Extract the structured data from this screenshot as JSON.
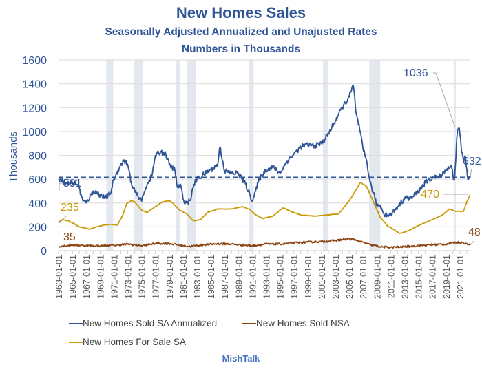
{
  "chart_data": {
    "type": "line",
    "title": "New Homes Sales",
    "subtitle": "Seasonally Adjusted Annualized and Unajusted Rates",
    "subtitle2": "Numbers in Thousands",
    "xlabel": "",
    "ylabel": "Thousands",
    "ylim": [
      0,
      1600
    ],
    "xlim": [
      1963.0,
      2022.5
    ],
    "yticks": [
      "0",
      "200",
      "400",
      "600",
      "800",
      "1000",
      "1200",
      "1400",
      "1600"
    ],
    "xticks": [
      "1963-01-01",
      "1965-01-01",
      "1967-01-01",
      "1969-01-01",
      "1971-01-01",
      "1973-01-01",
      "1975-01-01",
      "1977-01-01",
      "1979-01-01",
      "1981-01-01",
      "1983-01-01",
      "1985-01-01",
      "1987-01-01",
      "1989-01-01",
      "1991-01-01",
      "1993-01-01",
      "1995-01-01",
      "1997-01-01",
      "1999-01-01",
      "2001-01-01",
      "2003-01-01",
      "2005-01-01",
      "2007-01-01",
      "2009-01-01",
      "2011-01-01",
      "2013-01-01",
      "2015-01-01",
      "2017-01-01",
      "2019-01-01",
      "2021-01-01"
    ],
    "grid": true,
    "legend_position": "bottom",
    "reference_line": {
      "value": 615,
      "style": "dashed",
      "color": "#2f5597"
    },
    "recessions": [
      [
        1969.9,
        1970.9
      ],
      [
        1973.9,
        1975.2
      ],
      [
        1980.0,
        1980.5
      ],
      [
        1981.5,
        1982.9
      ],
      [
        1990.5,
        1991.2
      ],
      [
        2001.2,
        2001.9
      ],
      [
        2007.9,
        2009.5
      ],
      [
        2020.1,
        2020.35
      ]
    ],
    "series": [
      {
        "name": "New Homes Sold SA Annualized",
        "color": "#2f5597",
        "noise": 45,
        "x": [
          1963.0,
          1963.3,
          1964.0,
          1965.0,
          1965.8,
          1966.5,
          1967.0,
          1968.0,
          1969.0,
          1969.8,
          1970.5,
          1971.0,
          1971.8,
          1972.5,
          1973.0,
          1973.6,
          1974.0,
          1974.7,
          1975.1,
          1975.8,
          1976.5,
          1977.0,
          1977.8,
          1978.5,
          1979.0,
          1979.8,
          1980.2,
          1980.6,
          1981.0,
          1981.5,
          1982.0,
          1982.6,
          1983.0,
          1984.0,
          1985.0,
          1986.0,
          1986.3,
          1987.0,
          1988.0,
          1989.0,
          1990.0,
          1991.0,
          1991.5,
          1992.0,
          1993.0,
          1994.0,
          1995.0,
          1996.0,
          1997.0,
          1998.0,
          1999.0,
          2000.0,
          2001.0,
          2002.0,
          2003.0,
          2004.0,
          2005.0,
          2005.6,
          2006.0,
          2006.5,
          2007.0,
          2007.5,
          2008.0,
          2008.5,
          2009.0,
          2009.5,
          2010.0,
          2010.5,
          2011.0,
          2012.0,
          2013.0,
          2014.0,
          2015.0,
          2016.0,
          2017.0,
          2018.0,
          2019.0,
          2019.8,
          2020.2,
          2020.6,
          2020.9,
          2021.2,
          2021.5,
          2021.8,
          2022.0,
          2022.2,
          2022.5
        ],
        "y": [
          591,
          610,
          560,
          570,
          560,
          420,
          400,
          500,
          470,
          440,
          480,
          600,
          700,
          760,
          720,
          540,
          500,
          440,
          430,
          560,
          630,
          800,
          830,
          810,
          720,
          680,
          520,
          560,
          430,
          400,
          420,
          560,
          600,
          640,
          680,
          720,
          880,
          670,
          650,
          650,
          560,
          420,
          500,
          600,
          680,
          700,
          650,
          750,
          810,
          870,
          890,
          880,
          900,
          980,
          1090,
          1200,
          1290,
          1389,
          1150,
          1020,
          850,
          760,
          580,
          480,
          380,
          380,
          310,
          300,
          300,
          370,
          440,
          440,
          500,
          570,
          610,
          620,
          680,
          700,
          580,
          980,
          1036,
          860,
          760,
          790,
          680,
          580,
          632
        ]
      },
      {
        "name": "New Homes Sold NSA",
        "color": "#8b4513",
        "noise": 10,
        "x": [
          1963.0,
          1965.0,
          1967.0,
          1969.0,
          1971.0,
          1973.0,
          1975.0,
          1977.0,
          1979.0,
          1981.0,
          1982.0,
          1984.0,
          1986.0,
          1988.0,
          1990.0,
          1991.0,
          1993.0,
          1995.0,
          1997.0,
          1999.0,
          2001.0,
          2003.0,
          2005.0,
          2006.0,
          2008.0,
          2009.5,
          2011.0,
          2013.0,
          2015.0,
          2017.0,
          2019.0,
          2020.5,
          2021.5,
          2022.5
        ],
        "y": [
          35,
          48,
          42,
          40,
          45,
          55,
          42,
          60,
          60,
          42,
          35,
          50,
          58,
          55,
          45,
          42,
          55,
          55,
          65,
          72,
          75,
          85,
          100,
          88,
          50,
          32,
          28,
          33,
          42,
          50,
          55,
          70,
          65,
          48
        ]
      },
      {
        "name": "New Homes For Sale SA",
        "color": "#c99a06",
        "noise": 4,
        "x": [
          1963.0,
          1963.5,
          1964.5,
          1966.0,
          1967.5,
          1968.5,
          1969.5,
          1970.5,
          1971.5,
          1972.3,
          1972.8,
          1973.5,
          1974.0,
          1975.0,
          1975.8,
          1977.0,
          1978.0,
          1979.0,
          1979.5,
          1980.5,
          1981.5,
          1982.5,
          1983.5,
          1984.5,
          1986.0,
          1988.0,
          1989.5,
          1990.5,
          1991.5,
          1992.5,
          1994.0,
          1995.0,
          1995.5,
          1996.5,
          1998.0,
          2000.0,
          2002.0,
          2003.5,
          2005.0,
          2006.0,
          2006.6,
          2007.5,
          2008.5,
          2009.5,
          2010.5,
          2011.5,
          2012.3,
          2013.5,
          2015.0,
          2017.0,
          2018.5,
          2019.5,
          2020.3,
          2020.9,
          2021.5,
          2022.0,
          2022.5
        ],
        "y": [
          235,
          260,
          250,
          200,
          180,
          200,
          215,
          220,
          215,
          300,
          390,
          420,
          410,
          340,
          320,
          370,
          410,
          420,
          400,
          340,
          310,
          250,
          260,
          320,
          350,
          350,
          370,
          350,
          300,
          270,
          290,
          340,
          360,
          330,
          300,
          290,
          300,
          310,
          420,
          510,
          572,
          540,
          410,
          280,
          210,
          175,
          143,
          165,
          210,
          260,
          300,
          350,
          330,
          330,
          330,
          410,
          470
        ]
      }
    ],
    "annotations": [
      {
        "text": "591",
        "series": 0,
        "at": "first"
      },
      {
        "text": "1036",
        "series": 0,
        "at": "max-recent"
      },
      {
        "text": "632",
        "series": 0,
        "at": "last"
      },
      {
        "text": "35",
        "series": 1,
        "at": "first"
      },
      {
        "text": "48",
        "series": 1,
        "at": "last"
      },
      {
        "text": "235",
        "series": 2,
        "at": "first"
      },
      {
        "text": "470",
        "series": 2,
        "at": "last"
      }
    ]
  },
  "legend": [
    {
      "label": "New Homes Sold SA Annualized",
      "color": "#2f5597"
    },
    {
      "label": "New Homes Sold NSA",
      "color": "#8b4513"
    },
    {
      "label": "New Homes For Sale SA",
      "color": "#c99a06"
    }
  ],
  "credit": "MishTalk",
  "colors": {
    "title": "#2f5597",
    "recession": "#e3e8ef",
    "grid": "#e0e0e0",
    "axis_text": "#2f5597",
    "tick_text": "#595959"
  }
}
